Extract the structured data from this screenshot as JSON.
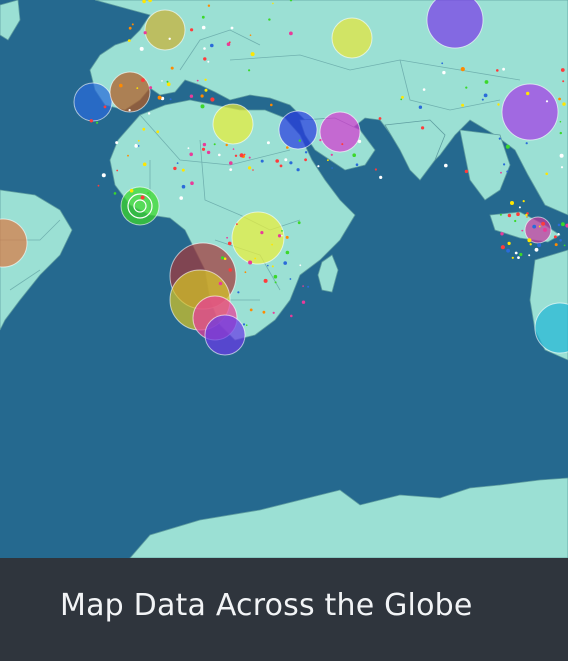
{
  "caption": {
    "title": "Map Data Across the Globe"
  },
  "map": {
    "water_color": "#25698f",
    "land_color": "#9be0d4",
    "border_color": "#5f9ea0"
  },
  "markers": [
    {
      "id": "north-africa",
      "color": "#e9ed37"
    },
    {
      "id": "morocco",
      "color": "#2a6bd9"
    },
    {
      "id": "iberia",
      "color": "#b35a22"
    },
    {
      "id": "west-africa",
      "color": "#3bd82a"
    },
    {
      "id": "central-africa",
      "color": "#ecef3a"
    },
    {
      "id": "angola",
      "color": "#a4383a"
    },
    {
      "id": "namibia",
      "color": "#d4c426"
    },
    {
      "id": "south-africa",
      "color": "#e93b9a"
    },
    {
      "id": "south-africa-2",
      "color": "#6a3ae6"
    },
    {
      "id": "brazil",
      "color": "#d97a44"
    },
    {
      "id": "arabia",
      "color": "#2a3de0"
    },
    {
      "id": "gulf",
      "color": "#d43ad0"
    },
    {
      "id": "caspian",
      "color": "#e6e53a"
    },
    {
      "id": "europe-north",
      "color": "#c9b035"
    },
    {
      "id": "russia",
      "color": "#7a3ae8"
    },
    {
      "id": "east-asia",
      "color": "#a43ae6"
    },
    {
      "id": "indonesia",
      "color": "#c6389e"
    },
    {
      "id": "australia",
      "color": "#22b6d6"
    }
  ]
}
